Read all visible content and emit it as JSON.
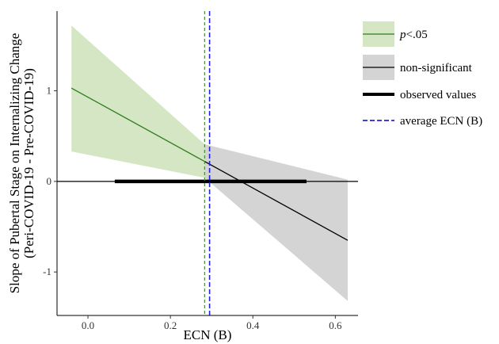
{
  "chart_data": {
    "type": "line",
    "xlabel": "ECN (B)",
    "ylabel_line1": "Slope of Pubertal Stage on Internalizing Change",
    "ylabel_line2": "(Peri-COVID-19 - Pre-COVID-19)",
    "xlim": [
      -0.075,
      0.655
    ],
    "ylim": [
      -1.48,
      1.88
    ],
    "x_ticks": [
      0.0,
      0.2,
      0.4,
      0.6
    ],
    "x_tick_labels": [
      "0.0",
      "0.2",
      "0.4",
      "0.6"
    ],
    "y_ticks": [
      -1,
      0,
      1
    ],
    "y_tick_labels": [
      "-1",
      "0",
      "1"
    ],
    "significance_cutoff_x": 0.283,
    "significant_segment": {
      "name": "p<.05",
      "color": "#2e7d1e",
      "fill": "#d4e6c3",
      "x": [
        -0.04,
        0.283
      ],
      "y": [
        1.03,
        0.22
      ],
      "ci_lower": [
        0.33,
        0.04
      ],
      "ci_upper": [
        1.72,
        0.41
      ]
    },
    "nonsignificant_segment": {
      "name": "non-significant",
      "color": "#000000",
      "fill": "#d4d4d4",
      "x": [
        0.283,
        0.63
      ],
      "y": [
        0.22,
        -0.65
      ],
      "ci_lower": [
        0.04,
        -1.32
      ],
      "ci_upper": [
        0.41,
        0.02
      ]
    },
    "observed_values_range": [
      0.065,
      0.53
    ],
    "average_ecn": 0.295,
    "reference_line_y": 0,
    "legend": {
      "placement": "right",
      "items": [
        {
          "label_prefix": "p",
          "label": "<.05",
          "type": "band-line",
          "color": "#2e7d1e",
          "fill": "#d4e6c3"
        },
        {
          "label_prefix": "",
          "label": "non-significant",
          "type": "band-line",
          "color": "#000000",
          "fill": "#d4d4d4"
        },
        {
          "label_prefix": "",
          "label": "observed values",
          "type": "thick-line",
          "color": "#000000"
        },
        {
          "label_prefix": "",
          "label": "average ECN (B)",
          "type": "dashed-line",
          "color": "#2222dd"
        }
      ]
    },
    "grid": false
  }
}
